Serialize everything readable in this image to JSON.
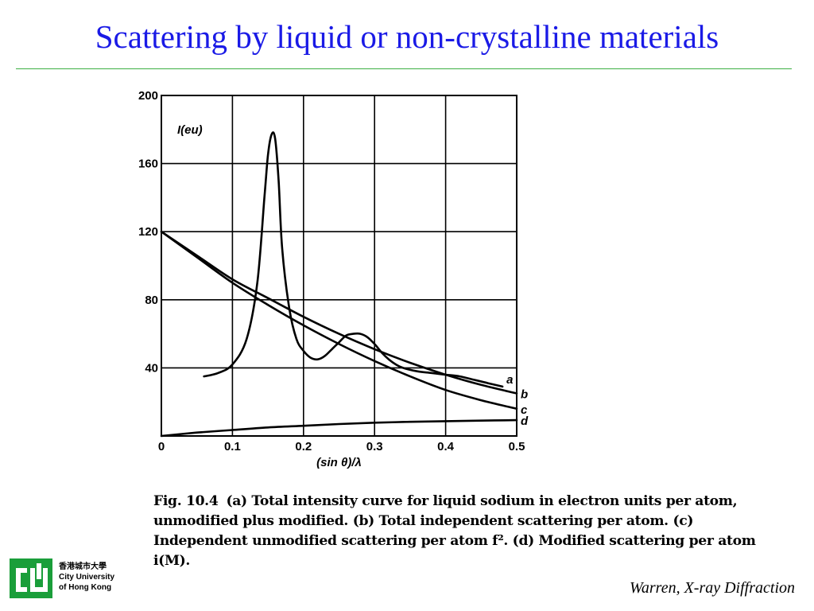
{
  "slide": {
    "title": "Scattering by liquid or non-crystalline materials",
    "citation": "Warren,  X-ray Diffraction",
    "logo": {
      "name_zh": "香港城市大學",
      "name_en_line1": "City University",
      "name_en_line2": "of Hong Kong",
      "color": "#1a9e3a"
    }
  },
  "caption": {
    "fig_label": "Fig. 10.4",
    "text": "(a) Total intensity curve for liquid sodium in electron units per atom, unmodified plus modified. (b) Total independent scattering per atom. (c) Independent unmodified scattering per atom f². (d) Modified scattering per atom i(M)."
  },
  "chart_data": {
    "type": "line",
    "title": "",
    "xlabel": "(sin θ)/λ",
    "ylabel": "I(eu)",
    "xlim": [
      0,
      0.5
    ],
    "ylim": [
      0,
      200
    ],
    "x_ticks": [
      0,
      0.1,
      0.2,
      0.3,
      0.4,
      0.5
    ],
    "x_tick_labels": [
      "0",
      "0.1",
      "0.2",
      "0.3",
      "0.4",
      "0.5"
    ],
    "y_ticks": [
      40,
      80,
      120,
      160,
      200
    ],
    "y_tick_labels": [
      "40",
      "80",
      "120",
      "160",
      "200"
    ],
    "grid": true,
    "series": [
      {
        "name": "a",
        "x": [
          0.06,
          0.08,
          0.1,
          0.12,
          0.135,
          0.145,
          0.15,
          0.155,
          0.16,
          0.165,
          0.17,
          0.18,
          0.19,
          0.2,
          0.21,
          0.22,
          0.23,
          0.24,
          0.25,
          0.26,
          0.27,
          0.28,
          0.29,
          0.3,
          0.31,
          0.32,
          0.33,
          0.34,
          0.36,
          0.38,
          0.4,
          0.42,
          0.44,
          0.46,
          0.48
        ],
        "y": [
          35,
          37,
          42,
          57,
          90,
          140,
          165,
          177,
          175,
          150,
          110,
          75,
          57,
          50,
          46,
          45,
          47,
          51,
          55,
          59,
          60,
          60,
          58,
          54,
          49,
          45,
          42,
          40,
          38,
          37,
          36,
          35,
          33,
          31,
          29
        ]
      },
      {
        "name": "b",
        "x": [
          0,
          0.05,
          0.1,
          0.15,
          0.2,
          0.25,
          0.3,
          0.35,
          0.4,
          0.45,
          0.5
        ],
        "y": [
          120,
          106,
          92,
          81,
          70,
          60,
          51,
          43,
          36,
          30,
          25
        ]
      },
      {
        "name": "c",
        "x": [
          0,
          0.05,
          0.1,
          0.15,
          0.2,
          0.25,
          0.3,
          0.35,
          0.4,
          0.45,
          0.5
        ],
        "y": [
          120,
          105,
          90,
          77,
          65,
          54,
          44,
          35,
          27,
          21,
          16
        ]
      },
      {
        "name": "d",
        "x": [
          0,
          0.05,
          0.1,
          0.15,
          0.2,
          0.25,
          0.3,
          0.35,
          0.4,
          0.45,
          0.5
        ],
        "y": [
          0,
          2,
          3.5,
          5,
          6,
          7,
          7.8,
          8.3,
          8.7,
          9,
          9.3
        ]
      }
    ],
    "line_color": "#000000"
  }
}
